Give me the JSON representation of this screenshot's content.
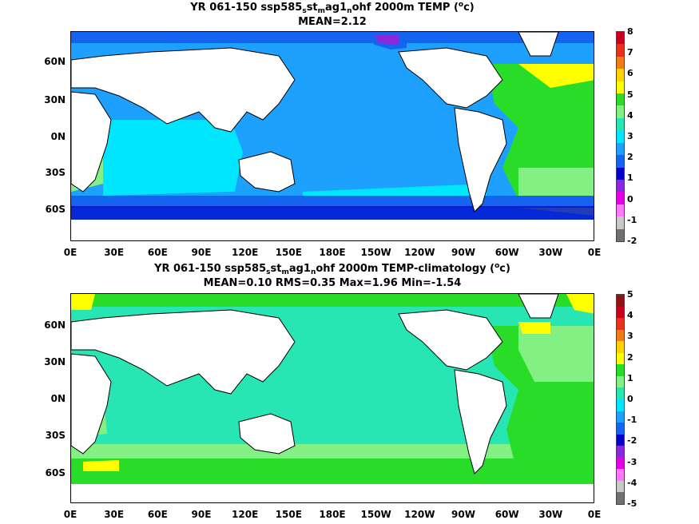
{
  "panels": [
    {
      "title_parts": [
        "YR 061-150 ssp585",
        "s",
        "st",
        "m",
        "ag1",
        "n",
        "ohf 2000m TEMP (",
        "o",
        "c)"
      ],
      "subtitle": "MEAN=2.12",
      "colorbar": {
        "labels": [
          "8",
          "7",
          "6",
          "5",
          "4",
          "3",
          "2",
          "1",
          "0",
          "-1",
          "-2"
        ],
        "colors": [
          "#c8001e",
          "#e8321e",
          "#f07d14",
          "#ffd200",
          "#ffff00",
          "#28dc28",
          "#82f082",
          "#28e6b4",
          "#00e6ff",
          "#1ea0ff",
          "#1464f0",
          "#0000c8",
          "#8c28dc",
          "#e600e6",
          "#ff78ff",
          "#c8c8c8",
          "#707070"
        ]
      }
    },
    {
      "title_parts": [
        "YR 061-150 ssp585",
        "s",
        "st",
        "m",
        "ag1",
        "n",
        "ohf 2000m TEMP-climatology (",
        "o",
        "c)"
      ],
      "subtitle": "MEAN=0.10   RMS=0.35   Max=1.96   Min=-1.54",
      "colorbar": {
        "labels": [
          "5",
          "4",
          "3",
          "2",
          "1",
          "0",
          "-1",
          "-2",
          "-3",
          "-4",
          "-5"
        ],
        "colors": [
          "#8c1414",
          "#c8001e",
          "#e8321e",
          "#f07d14",
          "#ffd200",
          "#ffff00",
          "#28dc28",
          "#82f082",
          "#28e6b4",
          "#00e6ff",
          "#1ea0ff",
          "#1464f0",
          "#0000c8",
          "#8c28dc",
          "#e600e6",
          "#ff78ff",
          "#c8c8c8",
          "#707070"
        ]
      }
    }
  ],
  "axes": {
    "lat_ticks": [
      "60N",
      "30N",
      "0N",
      "30S",
      "60S"
    ],
    "lon_ticks": [
      "0E",
      "30E",
      "60E",
      "90E",
      "120E",
      "150E",
      "180E",
      "150W",
      "120W",
      "90W",
      "60W",
      "30W",
      "0E"
    ]
  },
  "chart_data": [
    {
      "type": "heatmap",
      "title": "YR 061-150 ssp585_s st_m ag1_n ohf 2000m TEMP (oc)",
      "subtitle": "MEAN=2.12",
      "colorbar_range": [
        -2,
        8
      ],
      "colorbar_ticks": [
        8,
        7,
        6,
        5,
        4,
        3,
        2,
        1,
        0,
        -1,
        -2
      ]
    },
    {
      "type": "heatmap",
      "title": "YR 061-150 ssp585_s st_m ag1_n ohf 2000m TEMP-climatology (oc)",
      "subtitle": "MEAN=0.10   RMS=0.35   Max=1.96   Min=-1.54",
      "mean": 0.1,
      "rms": 0.35,
      "max": 1.96,
      "min": -1.54,
      "colorbar_range": [
        -5,
        5
      ],
      "colorbar_ticks": [
        5,
        4,
        3,
        2,
        1,
        0,
        -1,
        -2,
        -3,
        -4,
        -5
      ]
    }
  ]
}
